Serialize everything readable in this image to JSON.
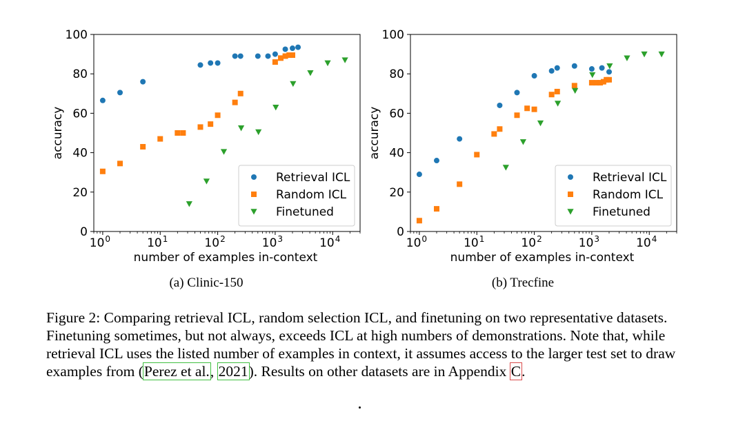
{
  "colors": {
    "Retrieval ICL": "#1f77b4",
    "Random ICL": "#ff7f0e",
    "Finetuned": "#2ca02c"
  },
  "chart_data": [
    {
      "type": "scatter",
      "subcaption": "(a) Clinic-150",
      "xlabel": "number of examples in-context",
      "ylabel": "accuracy",
      "xscale": "log",
      "xlim": [
        0.7,
        30000
      ],
      "ylim": [
        0,
        100
      ],
      "yticks": [
        "0",
        "20",
        "40",
        "60",
        "80",
        "100"
      ],
      "xticks": [
        {
          "base": "10",
          "exp": "0"
        },
        {
          "base": "10",
          "exp": "1"
        },
        {
          "base": "10",
          "exp": "2"
        },
        {
          "base": "10",
          "exp": "3"
        },
        {
          "base": "10",
          "exp": "4"
        }
      ],
      "legend": "lower-right",
      "series": [
        {
          "name": "Retrieval ICL",
          "marker": "circle",
          "x": [
            1,
            2,
            5,
            50,
            75,
            100,
            200,
            250,
            500,
            750,
            1000,
            1500,
            2000,
            2500
          ],
          "y": [
            66.5,
            70.5,
            76,
            84.5,
            85.5,
            85.5,
            89,
            89,
            89,
            89,
            90,
            92.5,
            93,
            93.5
          ]
        },
        {
          "name": "Random ICL",
          "marker": "square",
          "x": [
            1,
            2,
            5,
            10,
            20,
            25,
            50,
            75,
            100,
            200,
            250,
            1000,
            1250,
            1500,
            1750,
            2000
          ],
          "y": [
            30.5,
            34.5,
            43,
            47,
            50,
            50,
            53,
            54.5,
            59,
            65.5,
            70,
            86,
            88,
            89,
            89.5,
            89.5
          ]
        },
        {
          "name": "Finetuned",
          "marker": "triangle",
          "x": [
            32,
            64,
            128,
            256,
            512,
            1024,
            2048,
            4096,
            8192,
            16384
          ],
          "y": [
            14,
            25.5,
            40.5,
            52.5,
            50.5,
            63,
            75,
            80.5,
            85.5,
            87
          ]
        }
      ]
    },
    {
      "type": "scatter",
      "subcaption": "(b) Trecfine",
      "xlabel": "number of examples in-context",
      "ylabel": "accuracy",
      "xscale": "log",
      "xlim": [
        0.7,
        30000
      ],
      "ylim": [
        0,
        100
      ],
      "yticks": [
        "0",
        "20",
        "40",
        "60",
        "80",
        "100"
      ],
      "xticks": [
        {
          "base": "10",
          "exp": "0"
        },
        {
          "base": "10",
          "exp": "1"
        },
        {
          "base": "10",
          "exp": "2"
        },
        {
          "base": "10",
          "exp": "3"
        },
        {
          "base": "10",
          "exp": "4"
        }
      ],
      "legend": "lower-right",
      "series": [
        {
          "name": "Retrieval ICL",
          "marker": "circle",
          "x": [
            1,
            2,
            5,
            25,
            50,
            100,
            200,
            250,
            500,
            1000,
            1500,
            2000
          ],
          "y": [
            29,
            36,
            47,
            64,
            70.5,
            79,
            81.5,
            83,
            84,
            82.5,
            83,
            81
          ]
        },
        {
          "name": "Random ICL",
          "marker": "square",
          "x": [
            1,
            2,
            5,
            10,
            20,
            25,
            50,
            75,
            100,
            200,
            250,
            500,
            1000,
            1200,
            1400,
            1600,
            1800,
            2000
          ],
          "y": [
            5.5,
            11.5,
            24,
            39,
            49.5,
            52,
            59,
            62.5,
            62,
            69.5,
            71,
            74,
            75.5,
            75.5,
            75.5,
            76,
            77,
            77
          ]
        },
        {
          "name": "Finetuned",
          "marker": "triangle",
          "x": [
            32,
            64,
            128,
            256,
            512,
            1024,
            2048,
            4096,
            8192,
            16384
          ],
          "y": [
            32.5,
            45.5,
            55,
            65,
            71.5,
            79.5,
            84,
            88,
            90,
            90
          ]
        }
      ]
    }
  ],
  "caption": {
    "text_before": "Figure 2: Comparing retrieval ICL, random selection ICL, and finetuning on two representative datasets. Finetuning sometimes, but not always, exceeds ICL at high numbers of demonstrations. Note that, while retrieval ICL uses the listed number of examples in context, it assumes access to the larger test set to draw examples from (",
    "cite_author": "Perez et al.",
    "cite_sep": ", ",
    "cite_year": "2021",
    "text_middle": "). Results on other datasets are in Appendix ",
    "appendix_ref": "C",
    "text_after": "."
  }
}
